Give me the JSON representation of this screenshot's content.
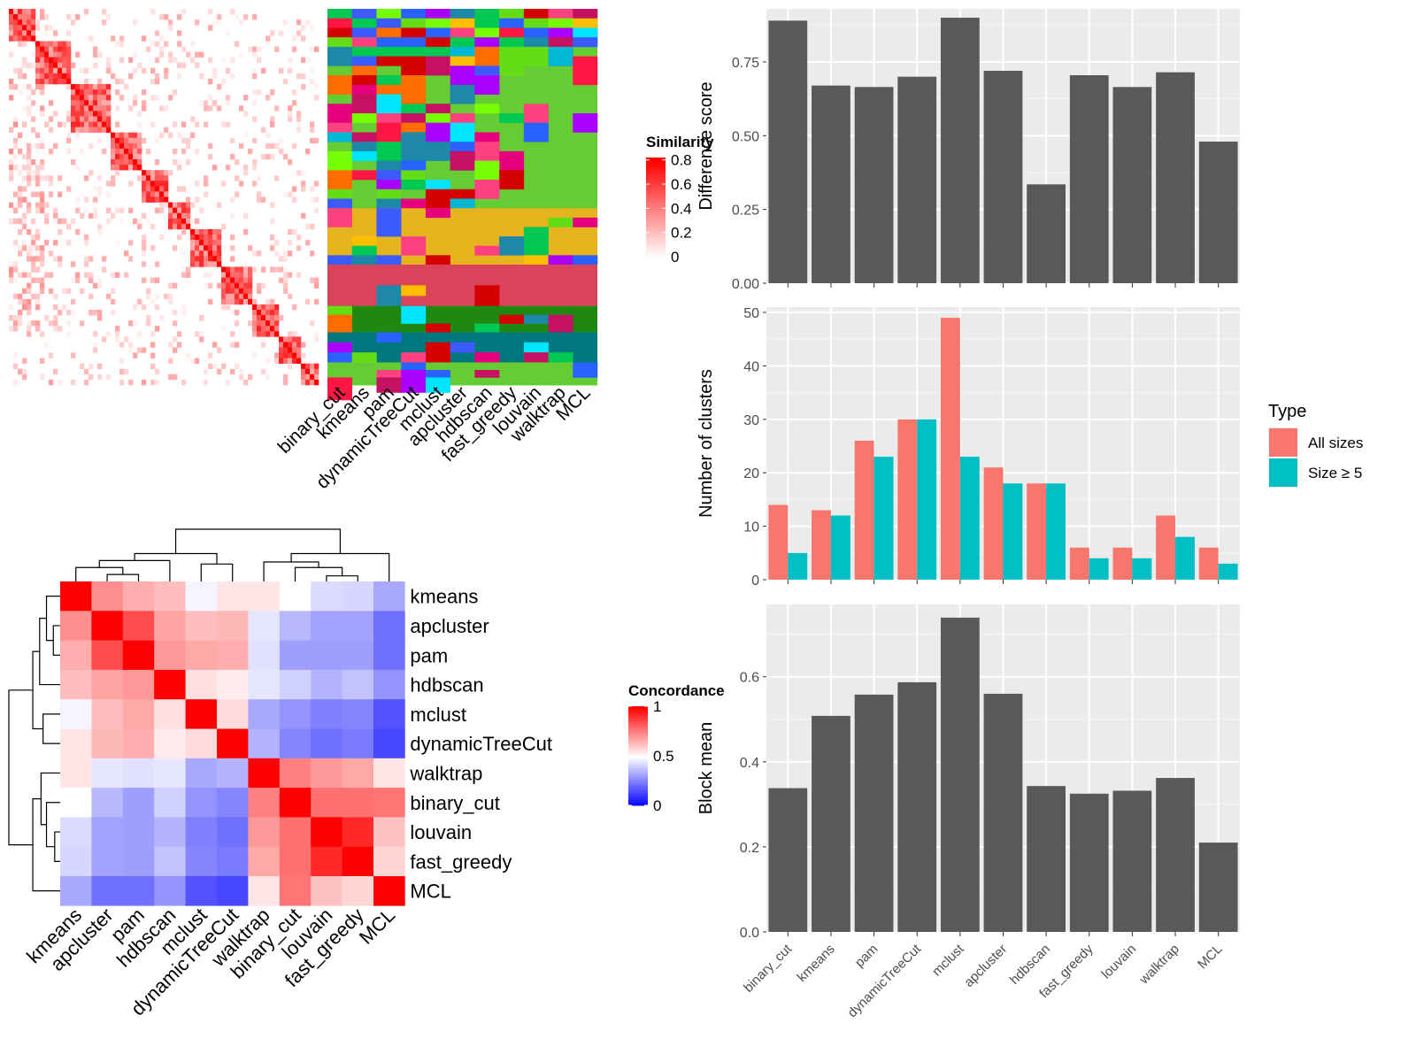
{
  "methods_hm": [
    "binary_cut",
    "kmeans",
    "pam",
    "dynamicTreeCut",
    "mclust",
    "apcluster",
    "hdbscan",
    "fast_greedy",
    "louvain",
    "walktrap",
    "MCL"
  ],
  "legend_similarity": {
    "title": "Similarity",
    "ticks": [
      "0",
      "0.2",
      "0.4",
      "0.6",
      "0.8"
    ],
    "tick_values": [
      0,
      0.2,
      0.4,
      0.6,
      0.8
    ]
  },
  "legend_concordance": {
    "title": "Concordance",
    "ticks": [
      "0",
      "0.5",
      "1"
    ],
    "tick_values": [
      0,
      0.5,
      1
    ]
  },
  "colors": {
    "panel_bg": "#ebebeb",
    "bar_dark": "#595959",
    "all_sizes": "#f8766d",
    "size_ge5": "#00bfc4",
    "sim_high": "#ff0000",
    "conc_low": "#0000ff"
  },
  "chart_data": [
    {
      "type": "heatmap",
      "panel": "similarity-matrix",
      "legend_title": "Similarity",
      "value_range": [
        0,
        0.8
      ],
      "n_terms": "approx 400 (rows = columns)"
    },
    {
      "type": "heatmap",
      "panel": "cluster-assignments",
      "columns": [
        "binary_cut",
        "kmeans",
        "pam",
        "dynamicTreeCut",
        "mclust",
        "apcluster",
        "hdbscan",
        "fast_greedy",
        "louvain",
        "walktrap",
        "MCL"
      ]
    },
    {
      "type": "heatmap",
      "panel": "concordance",
      "legend_title": "Concordance",
      "value_range": [
        0,
        1
      ],
      "rows": [
        "kmeans",
        "apcluster",
        "pam",
        "hdbscan",
        "mclust",
        "dynamicTreeCut",
        "walktrap",
        "binary_cut",
        "louvain",
        "fast_greedy",
        "MCL"
      ],
      "columns": [
        "kmeans",
        "apcluster",
        "pam",
        "hdbscan",
        "mclust",
        "dynamicTreeCut",
        "walktrap",
        "binary_cut",
        "louvain",
        "fast_greedy",
        "MCL"
      ],
      "values": [
        [
          1.0,
          0.72,
          0.66,
          0.63,
          0.48,
          0.55,
          0.55,
          0.5,
          0.43,
          0.42,
          0.33
        ],
        [
          0.72,
          1.0,
          0.85,
          0.68,
          0.63,
          0.64,
          0.45,
          0.36,
          0.32,
          0.32,
          0.22
        ],
        [
          0.66,
          0.85,
          1.0,
          0.7,
          0.67,
          0.66,
          0.44,
          0.31,
          0.31,
          0.31,
          0.22
        ],
        [
          0.63,
          0.68,
          0.7,
          1.0,
          0.56,
          0.54,
          0.45,
          0.41,
          0.35,
          0.38,
          0.29
        ],
        [
          0.48,
          0.63,
          0.67,
          0.56,
          1.0,
          0.57,
          0.33,
          0.29,
          0.25,
          0.26,
          0.16
        ],
        [
          0.55,
          0.64,
          0.66,
          0.54,
          0.57,
          1.0,
          0.35,
          0.26,
          0.22,
          0.24,
          0.14
        ],
        [
          0.55,
          0.45,
          0.44,
          0.45,
          0.33,
          0.35,
          1.0,
          0.75,
          0.7,
          0.67,
          0.55
        ],
        [
          0.5,
          0.36,
          0.31,
          0.41,
          0.29,
          0.26,
          0.75,
          1.0,
          0.78,
          0.78,
          0.77
        ],
        [
          0.43,
          0.32,
          0.31,
          0.35,
          0.25,
          0.22,
          0.7,
          0.78,
          1.0,
          0.92,
          0.62
        ],
        [
          0.42,
          0.32,
          0.31,
          0.38,
          0.26,
          0.24,
          0.67,
          0.78,
          0.92,
          1.0,
          0.58
        ],
        [
          0.33,
          0.22,
          0.22,
          0.29,
          0.16,
          0.14,
          0.55,
          0.77,
          0.62,
          0.58,
          1.0
        ]
      ]
    },
    {
      "type": "bar",
      "panel": "difference-score",
      "categories": [
        "binary_cut",
        "kmeans",
        "pam",
        "dynamicTreeCut",
        "mclust",
        "apcluster",
        "hdbscan",
        "fast_greedy",
        "louvain",
        "walktrap",
        "MCL"
      ],
      "values": [
        0.89,
        0.67,
        0.665,
        0.7,
        0.9,
        0.72,
        0.335,
        0.705,
        0.665,
        0.715,
        0.48
      ],
      "ylabel": "Difference score",
      "ylim": [
        0,
        0.93
      ],
      "yticks": [
        0,
        0.25,
        0.5,
        0.75
      ],
      "ytick_labels": [
        "0.00",
        "0.25",
        "0.50",
        "0.75"
      ],
      "grid": true
    },
    {
      "type": "bar",
      "panel": "number-of-clusters",
      "categories": [
        "binary_cut",
        "kmeans",
        "pam",
        "dynamicTreeCut",
        "mclust",
        "apcluster",
        "hdbscan",
        "fast_greedy",
        "louvain",
        "walktrap",
        "MCL"
      ],
      "series": [
        {
          "name": "All sizes",
          "values": [
            14,
            13,
            26,
            30,
            49,
            21,
            18,
            6,
            6,
            12,
            6
          ]
        },
        {
          "name": "Size ≥ 5",
          "values": [
            5,
            12,
            23,
            30,
            23,
            18,
            18,
            4,
            4,
            8,
            3
          ]
        }
      ],
      "ylabel": "Number of clusters",
      "ylim": [
        0,
        51
      ],
      "yticks": [
        0,
        10,
        20,
        30,
        40,
        50
      ],
      "ytick_labels": [
        "0",
        "10",
        "20",
        "30",
        "40",
        "50"
      ],
      "legend": {
        "title": "Type",
        "placement": "right"
      },
      "grid": true
    },
    {
      "type": "bar",
      "panel": "block-mean",
      "categories": [
        "binary_cut",
        "kmeans",
        "pam",
        "dynamicTreeCut",
        "mclust",
        "apcluster",
        "hdbscan",
        "fast_greedy",
        "louvain",
        "walktrap",
        "MCL"
      ],
      "values": [
        0.338,
        0.508,
        0.558,
        0.587,
        0.739,
        0.56,
        0.343,
        0.325,
        0.332,
        0.362,
        0.21
      ],
      "ylabel": "Block mean",
      "ylim": [
        0,
        0.77
      ],
      "yticks": [
        0,
        0.2,
        0.4,
        0.6
      ],
      "ytick_labels": [
        "0.0",
        "0.2",
        "0.4",
        "0.6"
      ],
      "grid": true
    }
  ]
}
